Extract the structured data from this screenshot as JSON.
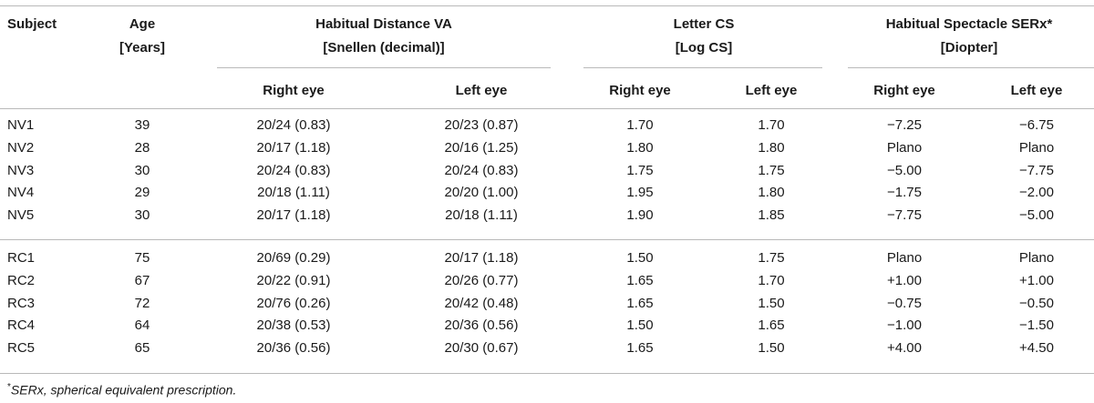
{
  "table": {
    "headers": {
      "subject": "Subject",
      "age": [
        "Age",
        "[Years]"
      ],
      "va": [
        "Habitual Distance VA",
        "[Snellen (decimal)]"
      ],
      "cs": [
        "Letter CS",
        "[Log CS]"
      ],
      "serx": [
        "Habitual Spectacle SERx*",
        "[Diopter]"
      ],
      "right_eye": "Right eye",
      "left_eye": "Left eye"
    },
    "groups": [
      {
        "rows": [
          {
            "subject": "NV1",
            "age": "39",
            "va_r": "20/24 (0.83)",
            "va_l": "20/23 (0.87)",
            "cs_r": "1.70",
            "cs_l": "1.70",
            "serx_r": "−7.25",
            "serx_l": "−6.75"
          },
          {
            "subject": "NV2",
            "age": "28",
            "va_r": "20/17 (1.18)",
            "va_l": "20/16 (1.25)",
            "cs_r": "1.80",
            "cs_l": "1.80",
            "serx_r": "Plano",
            "serx_l": "Plano"
          },
          {
            "subject": "NV3",
            "age": "30",
            "va_r": "20/24 (0.83)",
            "va_l": "20/24 (0.83)",
            "cs_r": "1.75",
            "cs_l": "1.75",
            "serx_r": "−5.00",
            "serx_l": "−7.75"
          },
          {
            "subject": "NV4",
            "age": "29",
            "va_r": "20/18 (1.11)",
            "va_l": "20/20 (1.00)",
            "cs_r": "1.95",
            "cs_l": "1.80",
            "serx_r": "−1.75",
            "serx_l": "−2.00"
          },
          {
            "subject": "NV5",
            "age": "30",
            "va_r": "20/17 (1.18)",
            "va_l": "20/18 (1.11)",
            "cs_r": "1.90",
            "cs_l": "1.85",
            "serx_r": "−7.75",
            "serx_l": "−5.00"
          }
        ]
      },
      {
        "rows": [
          {
            "subject": "RC1",
            "age": "75",
            "va_r": "20/69 (0.29)",
            "va_l": "20/17 (1.18)",
            "cs_r": "1.50",
            "cs_l": "1.75",
            "serx_r": "Plano",
            "serx_l": "Plano"
          },
          {
            "subject": "RC2",
            "age": "67",
            "va_r": "20/22 (0.91)",
            "va_l": "20/26 (0.77)",
            "cs_r": "1.65",
            "cs_l": "1.70",
            "serx_r": "+1.00",
            "serx_l": "+1.00"
          },
          {
            "subject": "RC3",
            "age": "72",
            "va_r": "20/76 (0.26)",
            "va_l": "20/42 (0.48)",
            "cs_r": "1.65",
            "cs_l": "1.50",
            "serx_r": "−0.75",
            "serx_l": "−0.50"
          },
          {
            "subject": "RC4",
            "age": "64",
            "va_r": "20/38 (0.53)",
            "va_l": "20/36 (0.56)",
            "cs_r": "1.50",
            "cs_l": "1.65",
            "serx_r": "−1.00",
            "serx_l": "−1.50"
          },
          {
            "subject": "RC5",
            "age": "65",
            "va_r": "20/36 (0.56)",
            "va_l": "20/30 (0.67)",
            "cs_r": "1.65",
            "cs_l": "1.50",
            "serx_r": "+4.00",
            "serx_l": "+4.50"
          }
        ]
      }
    ]
  },
  "footnote": {
    "marker": "*",
    "text": "SERx, spherical equivalent prescription."
  }
}
